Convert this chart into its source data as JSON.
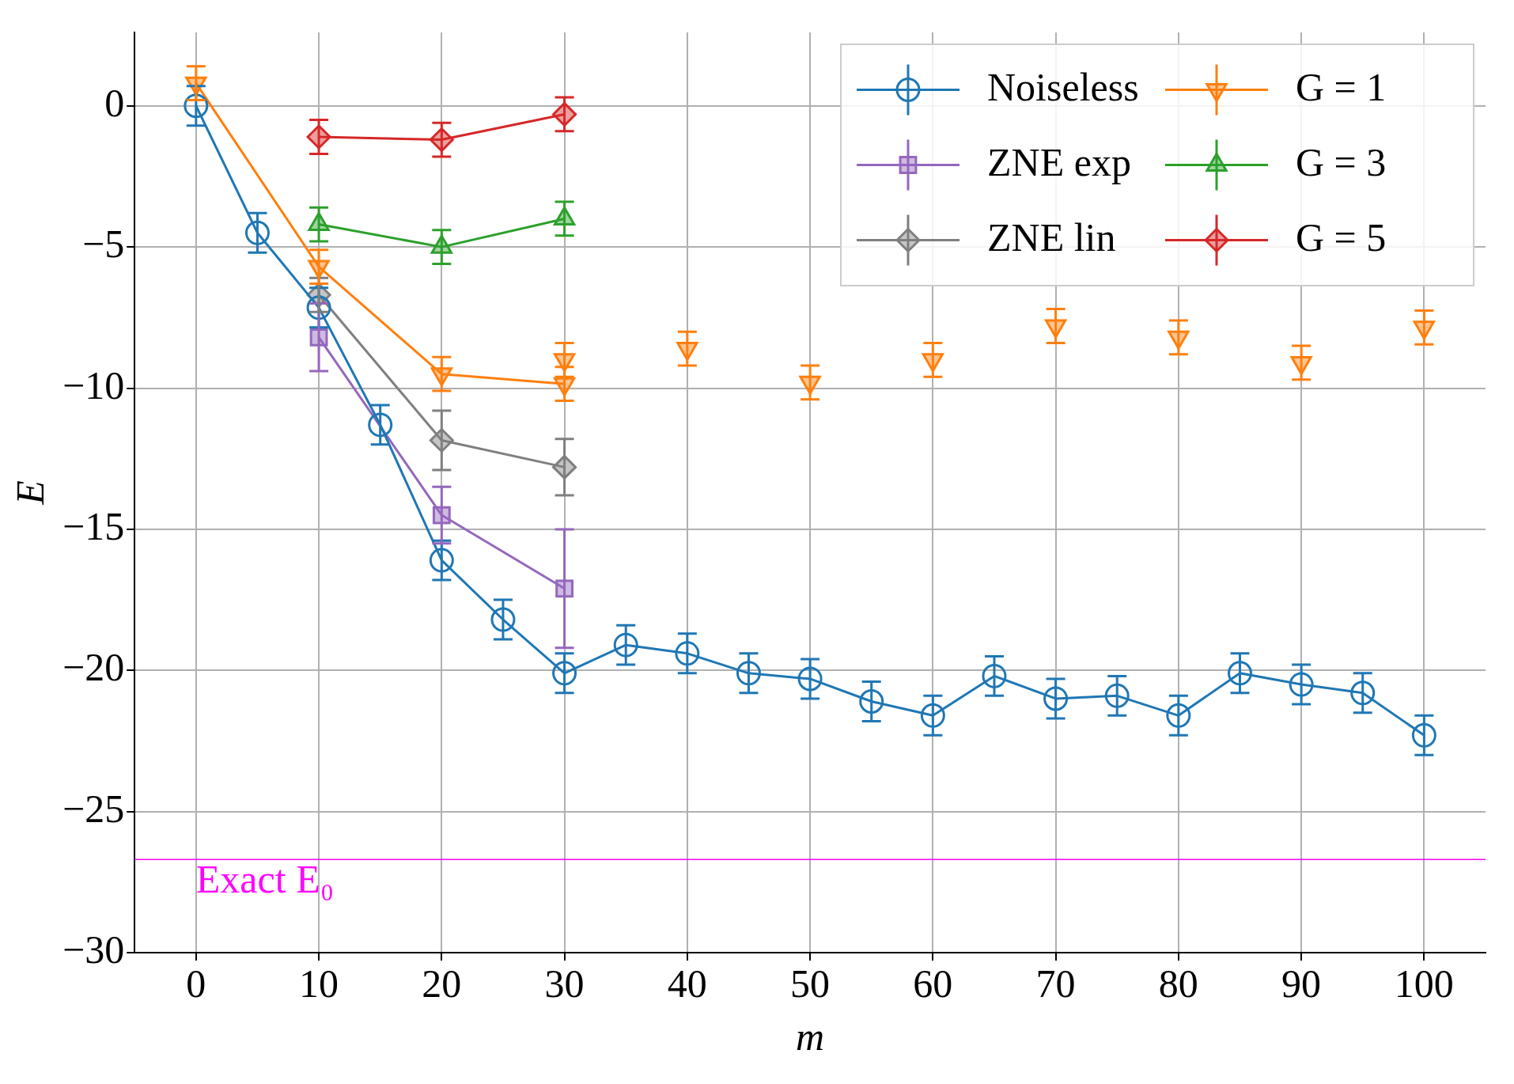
{
  "chart_data": {
    "type": "line",
    "xlabel": "m",
    "ylabel": "E",
    "xlim": [
      -5,
      105
    ],
    "ylim": [
      -30,
      2.6
    ],
    "xticks": [
      0,
      10,
      20,
      30,
      40,
      50,
      60,
      70,
      80,
      90,
      100
    ],
    "yticks": [
      -30,
      -25,
      -20,
      -15,
      -10,
      -5,
      0
    ],
    "grid": true,
    "legend": "top right",
    "series": [
      {
        "name": "Noiseless",
        "color": "#1f77b4",
        "marker": "circle",
        "x": [
          0,
          5,
          10,
          15,
          20,
          25,
          30,
          35,
          40,
          45,
          50,
          55,
          60,
          65,
          70,
          75,
          80,
          85,
          90,
          95,
          100
        ],
        "values": [
          0,
          -4.5,
          -7.15,
          -11.3,
          -16.1,
          -18.2,
          -20.1,
          -19.1,
          -19.4,
          -20.1,
          -20.3,
          -21.1,
          -21.6,
          -20.2,
          -21.0,
          -20.9,
          -21.6,
          -20.1,
          -20.5,
          -20.8,
          -22.3
        ],
        "errors": [
          0.7,
          0.7,
          0.7,
          0.7,
          0.7,
          0.7,
          0.7,
          0.7,
          0.7,
          0.7,
          0.7,
          0.7,
          0.7,
          0.7,
          0.7,
          0.7,
          0.7,
          0.7,
          0.7,
          0.7,
          0.7
        ]
      },
      {
        "name": "ZNE exp",
        "color": "#9467bd",
        "marker": "square",
        "x": [
          10,
          20,
          30
        ],
        "values": [
          -8.2,
          -14.5,
          -17.1
        ],
        "errors": [
          1.2,
          1.0,
          2.1
        ]
      },
      {
        "name": "ZNE lin",
        "color": "#7f7f7f",
        "marker": "diamond",
        "x": [
          10,
          20,
          30
        ],
        "values": [
          -6.7,
          -11.85,
          -12.8
        ],
        "errors": [
          0.6,
          1.05,
          1.0
        ]
      },
      {
        "name": "G = 1",
        "color": "#ff7f0e",
        "marker": "triangle_down",
        "x": [
          0,
          10,
          20,
          30
        ],
        "values": [
          0.8,
          -5.7,
          -9.5,
          -9.85
        ],
        "errors": [
          0.6,
          0.6,
          0.6,
          0.6
        ]
      },
      {
        "name": "G = 3",
        "color": "#2ca02c",
        "marker": "triangle",
        "x": [
          10,
          20,
          30
        ],
        "values": [
          -4.2,
          -5.0,
          -4.0
        ],
        "errors": [
          0.6,
          0.6,
          0.6
        ]
      },
      {
        "name": "G = 5",
        "color": "#d62728",
        "marker": "diamond",
        "x": [
          10,
          20,
          30
        ],
        "values": [
          -1.1,
          -1.2,
          -0.3
        ],
        "errors": [
          0.6,
          0.6,
          0.6
        ]
      },
      {
        "type": "scatter",
        "color": "#ff7f0e",
        "marker": "triangle_down",
        "x": [
          30,
          40,
          50,
          60,
          70,
          80,
          90,
          100
        ],
        "values": [
          -9.0,
          -8.6,
          -9.8,
          -9.0,
          -7.8,
          -8.2,
          -9.1,
          -7.85
        ],
        "errors": [
          0.6,
          0.6,
          0.6,
          0.6,
          0.6,
          0.6,
          0.6,
          0.6
        ]
      }
    ],
    "ref_lines": [
      {
        "axis": "y",
        "value": -26.7,
        "label": "Exact E₀",
        "color": "#ff00ff"
      }
    ]
  }
}
